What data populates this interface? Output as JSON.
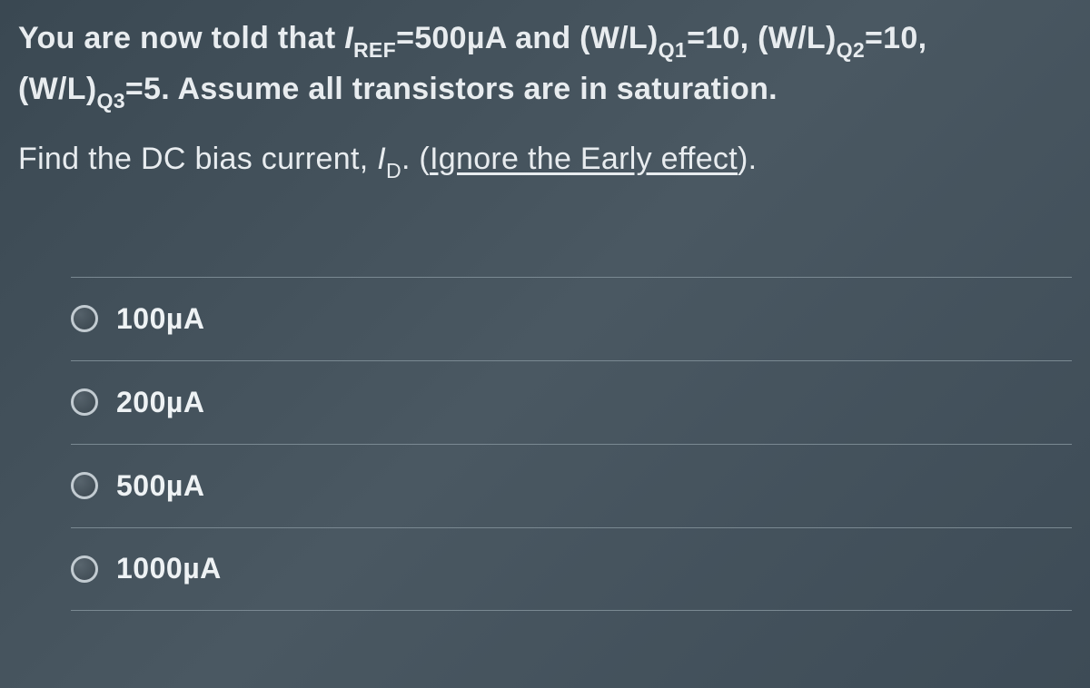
{
  "question": {
    "line1_part1": "You are now told that ",
    "iref_var": "I",
    "iref_sub": "REF",
    "iref_val": "=500µA and (W/L)",
    "q1_sub": "Q1",
    "q1_val": "=10, (W/L)",
    "q2_sub": "Q2",
    "q2_val": "=10,",
    "line2_part1": "(W/L)",
    "q3_sub": "Q3",
    "q3_val": "=5. Assume all transistors are in saturation."
  },
  "prompt": {
    "part1": "Find the DC bias current, ",
    "id_var": "I",
    "id_sub": "D",
    "part2": ". (",
    "underlined": "Ignore the Early effect",
    "part3": ")."
  },
  "options": [
    {
      "label": "100µA"
    },
    {
      "label": "200µA"
    },
    {
      "label": "500µA"
    },
    {
      "label": "1000µA"
    }
  ],
  "colors": {
    "background": "#3f4d57",
    "text": "#e8ecef",
    "border": "#7a8992",
    "radio_border": "#c2cbd1"
  }
}
